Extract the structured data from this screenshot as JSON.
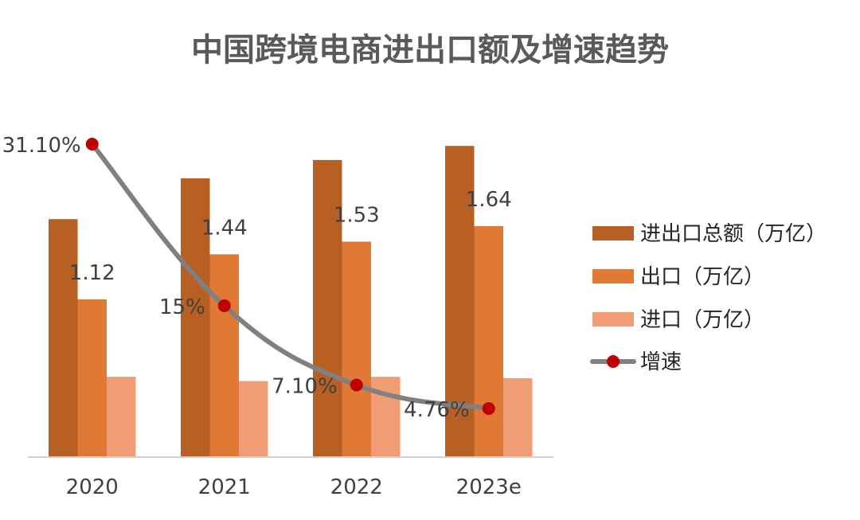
{
  "colors": {
    "total": "#B85F23",
    "export": "#E07933",
    "import": "#F09C74",
    "line": "#808080",
    "marker": "#C00000",
    "axis": "#D0D0D0"
  },
  "chart_data": {
    "type": "bar",
    "title": "中国跨境电商进出口额及增速趋势",
    "categories": [
      "2020",
      "2021",
      "2022",
      "2023e"
    ],
    "series": [
      {
        "name": "进出口总额（万亿）",
        "type": "bar",
        "values": [
          1.69,
          1.98,
          2.11,
          2.21
        ]
      },
      {
        "name": "出口（万亿）",
        "type": "bar",
        "values": [
          1.12,
          1.44,
          1.53,
          1.64
        ]
      },
      {
        "name": "进口（万亿）",
        "type": "bar",
        "values": [
          0.57,
          0.54,
          0.57,
          0.56
        ]
      },
      {
        "name": "增速",
        "type": "line",
        "values": [
          31.1,
          15,
          7.1,
          4.76
        ]
      }
    ],
    "data_labels": {
      "export": [
        "1.12",
        "1.44",
        "1.53",
        "1.64"
      ],
      "growth": [
        "31.10%",
        "15%",
        "7.10%",
        "4.76%"
      ]
    },
    "bar_ylim": [
      0,
      2.2
    ],
    "line_ylim": [
      0,
      31.1
    ],
    "legend_position": "right",
    "grid": false
  }
}
